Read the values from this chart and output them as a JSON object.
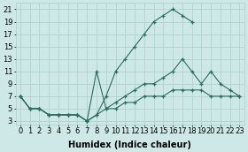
{
  "line1_x": [
    0,
    1,
    2,
    3,
    4,
    5,
    6,
    7,
    8,
    9,
    10,
    11,
    12,
    13,
    14,
    15,
    16,
    17,
    18
  ],
  "line1_y": [
    7,
    5,
    5,
    4,
    4,
    4,
    4,
    3,
    4,
    7,
    11,
    13,
    15,
    17,
    19,
    20,
    21,
    20,
    19
  ],
  "line2_x": [
    0,
    1,
    2,
    3,
    4,
    5,
    6,
    7,
    8,
    9,
    10,
    11,
    12,
    13,
    14,
    15,
    16,
    17,
    18,
    19,
    20,
    21,
    22,
    23
  ],
  "line2_y": [
    7,
    5,
    5,
    4,
    4,
    4,
    4,
    3,
    11,
    5,
    6,
    7,
    8,
    9,
    9,
    10,
    11,
    13,
    11,
    9,
    11,
    9,
    8,
    7
  ],
  "line3_x": [
    0,
    1,
    2,
    3,
    4,
    5,
    6,
    7,
    8,
    9,
    10,
    11,
    12,
    13,
    14,
    15,
    16,
    17,
    18,
    19,
    20,
    21,
    22,
    23
  ],
  "line3_y": [
    7,
    5,
    5,
    4,
    4,
    4,
    4,
    3,
    4,
    5,
    5,
    6,
    6,
    7,
    7,
    7,
    8,
    8,
    8,
    8,
    7,
    7,
    7,
    7
  ],
  "line_color": "#276e62",
  "bg_color": "#cde8e6",
  "grid_color": "#aacfcc",
  "xlabel": "Humidex (Indice chaleur)",
  "xlim_min": -0.5,
  "xlim_max": 23.5,
  "ylim_min": 2.5,
  "ylim_max": 22,
  "xticks": [
    0,
    1,
    2,
    3,
    4,
    5,
    6,
    7,
    8,
    9,
    10,
    11,
    12,
    13,
    14,
    15,
    16,
    17,
    18,
    19,
    20,
    21,
    22,
    23
  ],
  "yticks": [
    3,
    5,
    7,
    9,
    11,
    13,
    15,
    17,
    19,
    21
  ],
  "tick_fontsize": 6.0,
  "xlabel_fontsize": 7.0
}
